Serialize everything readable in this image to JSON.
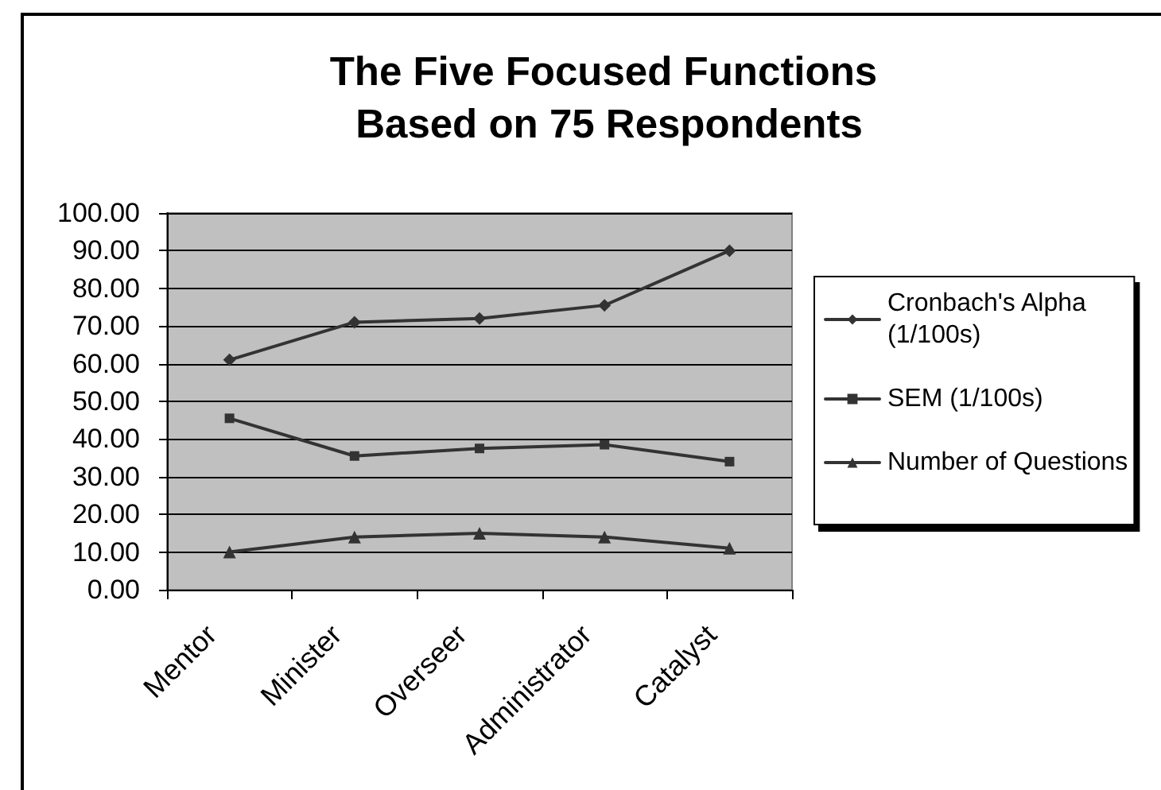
{
  "chart_data": {
    "type": "line",
    "title": "The Five Focused Functions Based on 75 Respondents",
    "categories": [
      "Mentor",
      "Minister",
      "Overseer",
      "Administrator",
      "Catalyst"
    ],
    "series": [
      {
        "name": "Cronbach's Alpha (1/100s)",
        "color": "#333333",
        "marker": "diamond",
        "values": [
          61,
          71,
          72,
          75.5,
          90
        ]
      },
      {
        "name": "SEM (1/100s)",
        "color": "#333333",
        "marker": "square",
        "values": [
          45.5,
          35.5,
          37.5,
          38.5,
          34
        ]
      },
      {
        "name": "Number of Questions",
        "color": "#333333",
        "marker": "triangle",
        "values": [
          10,
          14,
          15,
          14,
          11
        ]
      }
    ],
    "ylim": [
      0,
      100
    ],
    "yticks": [
      {
        "value": 0,
        "label": "0.00"
      },
      {
        "value": 10,
        "label": "10.00"
      },
      {
        "value": 20,
        "label": "20.00"
      },
      {
        "value": 30,
        "label": "30.00"
      },
      {
        "value": 40,
        "label": "40.00"
      },
      {
        "value": 50,
        "label": "50.00"
      },
      {
        "value": 60,
        "label": "60.00"
      },
      {
        "value": 70,
        "label": "70.00"
      },
      {
        "value": 80,
        "label": "80.00"
      },
      {
        "value": 90,
        "label": "90.00"
      },
      {
        "value": 100,
        "label": "100.00"
      }
    ],
    "grid": "y",
    "legend": "right",
    "line_style": "solid"
  }
}
